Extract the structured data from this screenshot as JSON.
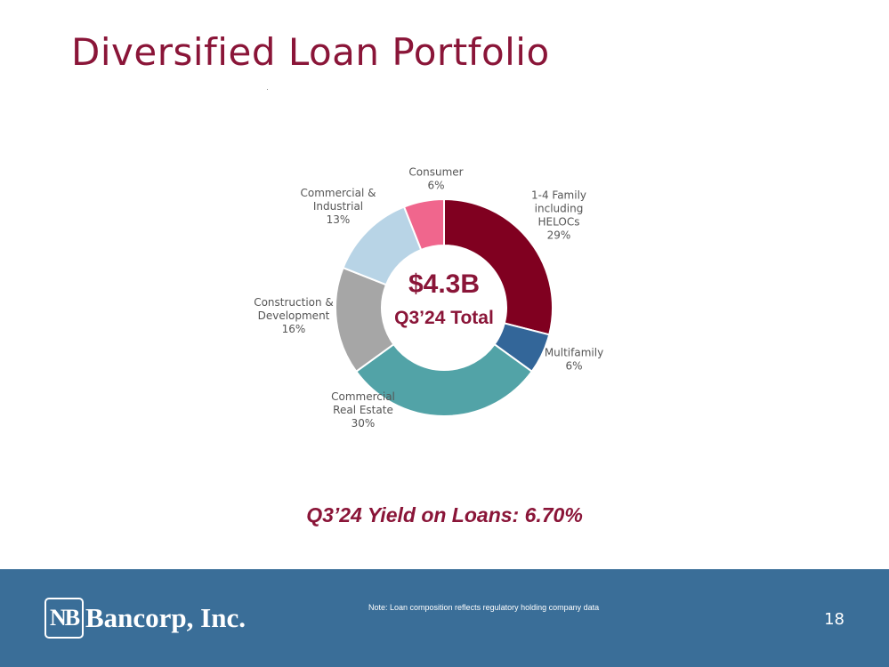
{
  "slide": {
    "title": "Diversified Loan Portfolio",
    "yield_text": "Q3’24 Yield on Loans: 6.70%"
  },
  "chart_data": {
    "type": "pie",
    "donut": true,
    "center_value": "$4.3B",
    "center_caption": "Q3’24 Total",
    "slices": [
      {
        "lines": [
          "1-4 Family",
          "including",
          "HELOCs",
          "29%"
        ],
        "value": 29,
        "color": "#800020"
      },
      {
        "lines": [
          "Multifamily",
          "6%"
        ],
        "value": 6,
        "color": "#336699"
      },
      {
        "lines": [
          "Commercial",
          "Real Estate",
          "30%"
        ],
        "value": 30,
        "color": "#52a3a7"
      },
      {
        "lines": [
          "Construction &",
          "Development",
          "16%"
        ],
        "value": 16,
        "color": "#a6a6a6"
      },
      {
        "lines": [
          "Commercial &",
          "Industrial",
          "13%"
        ],
        "value": 13,
        "color": "#b8d4e6"
      },
      {
        "lines": [
          "Consumer",
          "6%"
        ],
        "value": 6,
        "color": "#f0668d"
      }
    ]
  },
  "footer": {
    "logo_mark": "NB",
    "logo_text": "Bancorp, Inc.",
    "note": "Note: Loan composition reflects regulatory holding company data",
    "page_number": "18"
  }
}
